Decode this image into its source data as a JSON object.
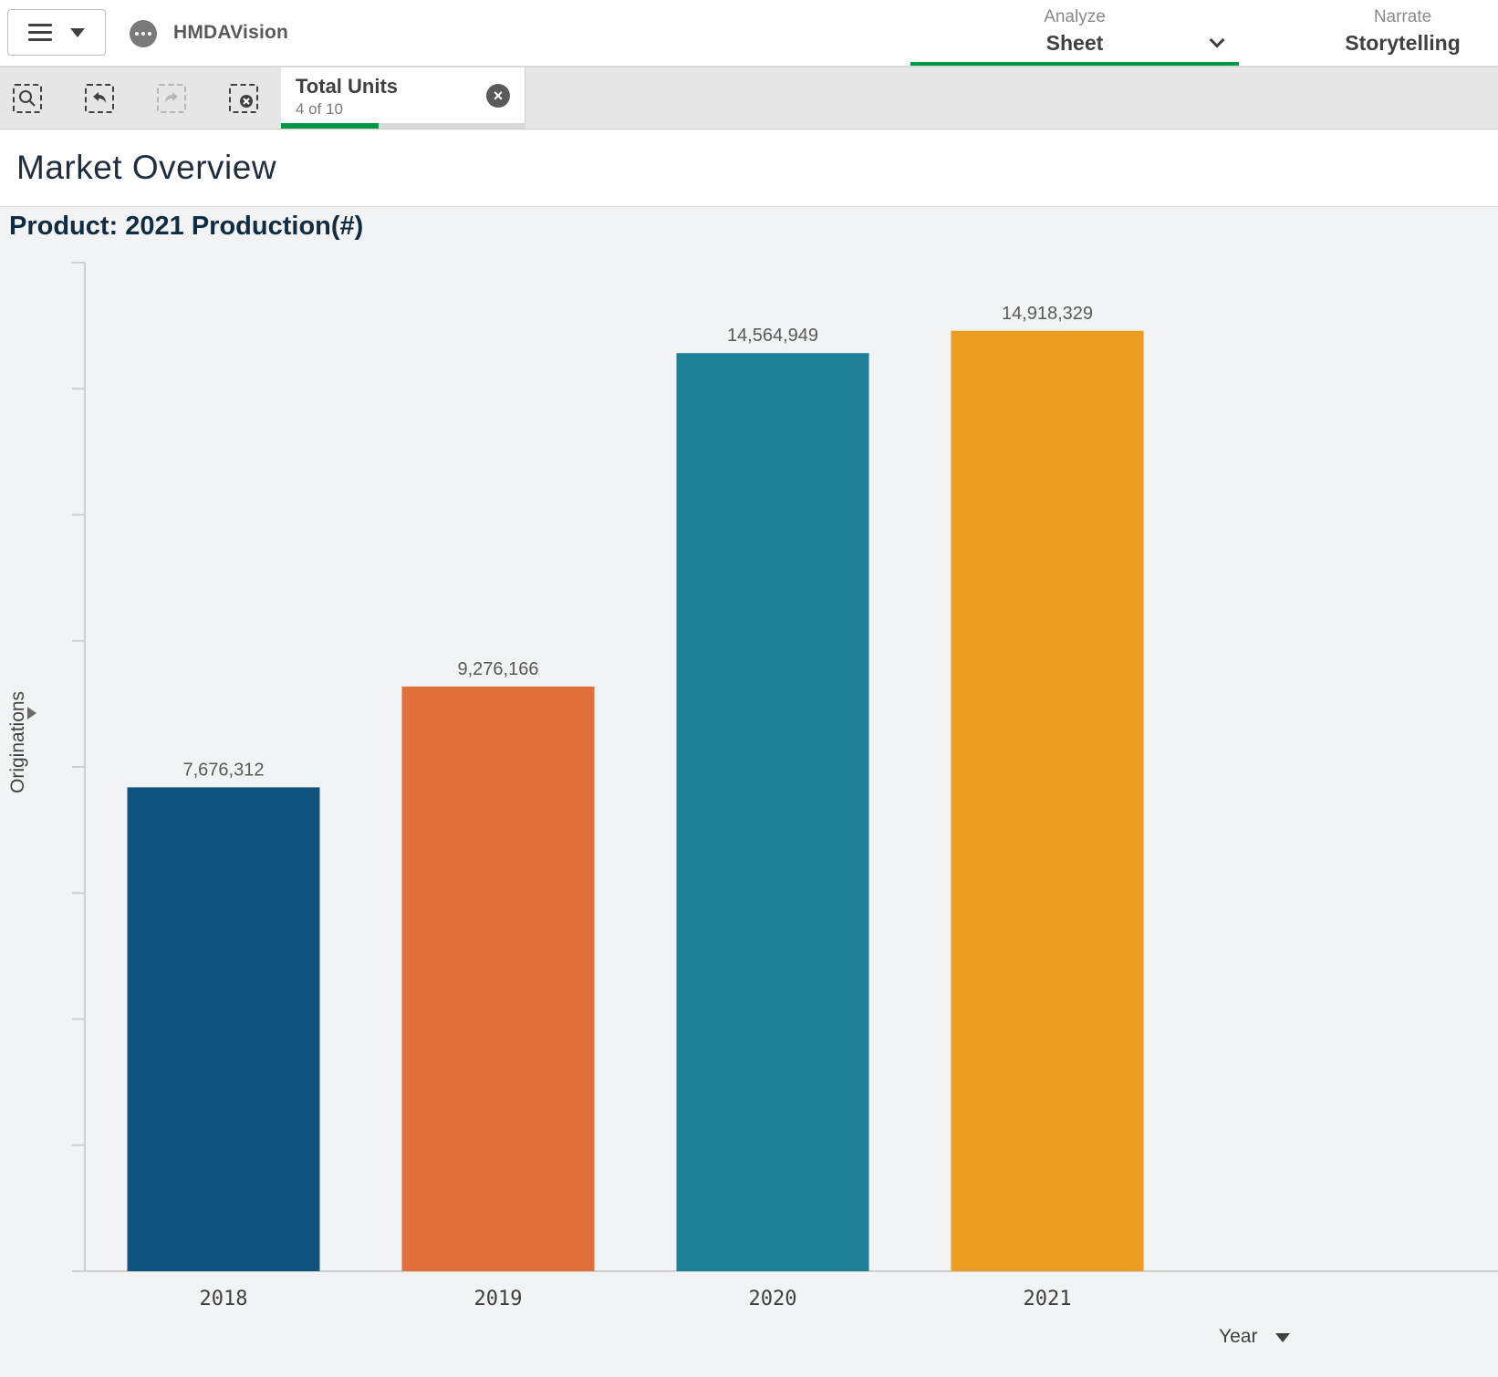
{
  "app": {
    "name": "HMDAVision"
  },
  "nav": {
    "analyze": {
      "sub": "Analyze",
      "main": "Sheet"
    },
    "narrate": {
      "sub": "Narrate",
      "main": "Storytelling"
    }
  },
  "selection": {
    "title": "Total Units",
    "count_text": "4 of 10",
    "selected": 4,
    "total": 10
  },
  "sheet": {
    "title": "Market Overview"
  },
  "colors": {
    "accent": "#009845",
    "bar_2018": "#10527e",
    "bar_2019": "#e0703a",
    "bar_2020": "#1f8198",
    "bar_2021": "#eb9d20"
  },
  "chart_data": {
    "type": "bar",
    "title": "Product: 2021 Production(#)",
    "xlabel": "Year",
    "ylabel": "Originations",
    "categories": [
      "2018",
      "2019",
      "2020",
      "2021"
    ],
    "values": [
      7676312,
      9276166,
      14564949,
      14918329
    ],
    "value_labels": [
      "7,676,312",
      "9,276,166",
      "14,564,949",
      "14,918,329"
    ],
    "ylim": [
      0,
      16000000
    ],
    "grid": false,
    "legend": "none"
  }
}
